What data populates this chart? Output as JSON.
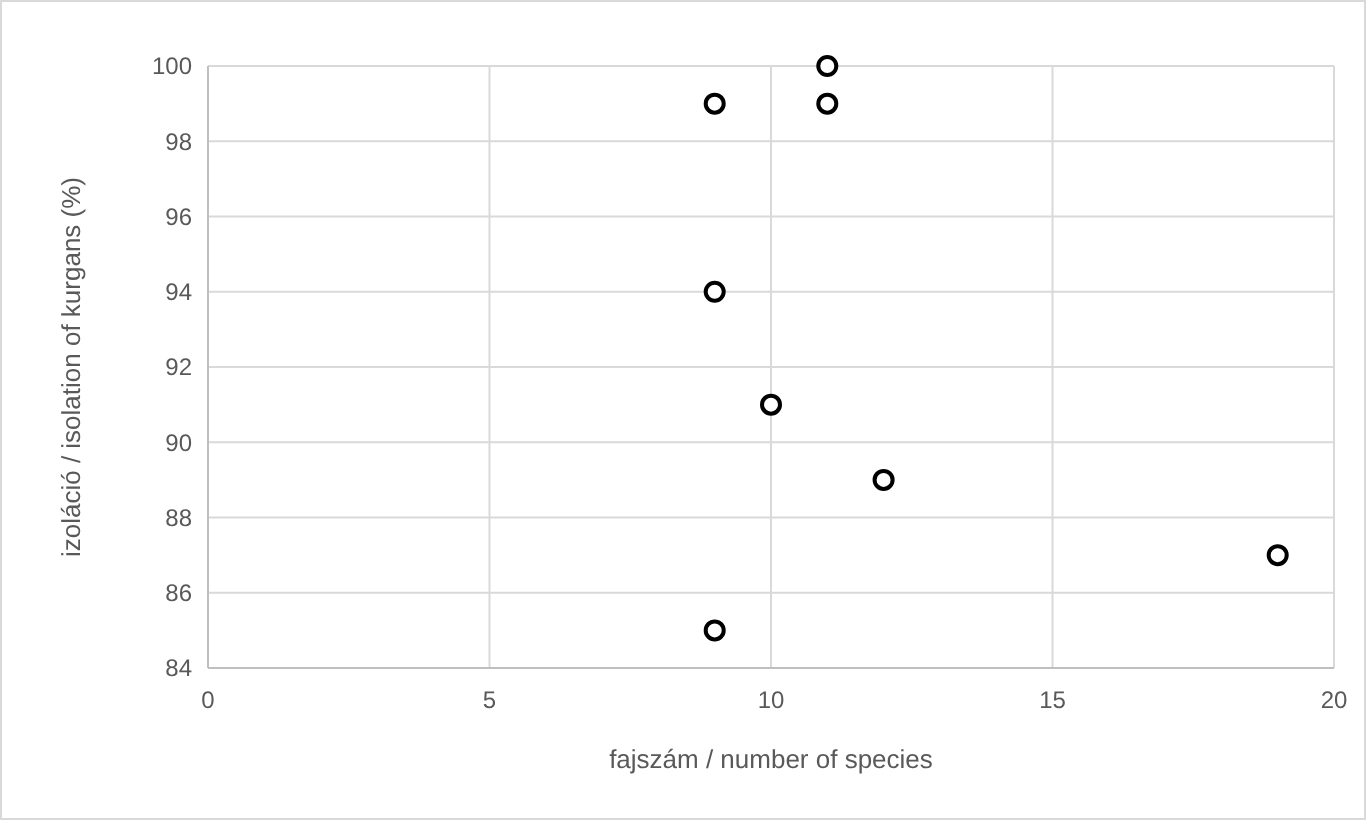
{
  "chart_data": {
    "type": "scatter",
    "xlabel": "fajszám / number of species",
    "ylabel": "izoláció / isolation of kurgans (%)",
    "x": [
      11,
      9,
      11,
      9,
      10,
      12,
      19,
      9
    ],
    "series": [
      {
        "color": "#000000",
        "values": [
          100,
          99,
          99,
          94,
          91,
          89,
          87,
          85
        ]
      }
    ],
    "xlim": [
      0,
      20
    ],
    "xticks": [
      0,
      5,
      10,
      15,
      20
    ],
    "ylim": [
      84,
      100
    ],
    "yticks": [
      84,
      86,
      88,
      90,
      92,
      94,
      96,
      98,
      100
    ],
    "grid": true,
    "marker": "circle"
  }
}
